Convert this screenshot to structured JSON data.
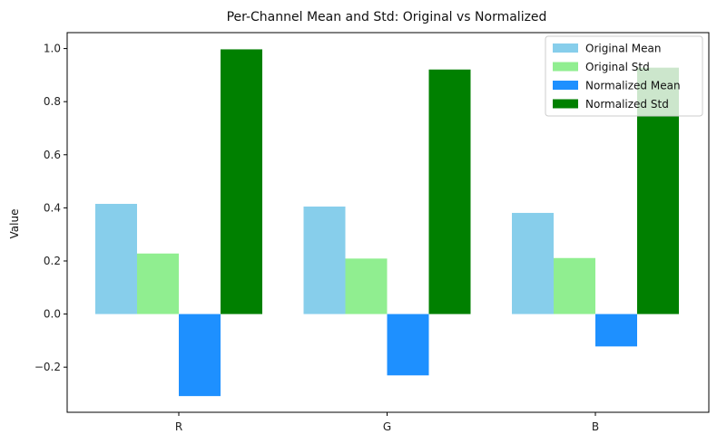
{
  "chart_data": {
    "type": "bar",
    "title": "Per-Channel Mean and Std: Original vs Normalized",
    "xlabel": "",
    "ylabel": "Value",
    "categories": [
      "R",
      "G",
      "B"
    ],
    "series": [
      {
        "name": "Original Mean",
        "color": "#87CEEB",
        "values": [
          0.415,
          0.405,
          0.381
        ]
      },
      {
        "name": "Original Std",
        "color": "#90EE90",
        "values": [
          0.228,
          0.209,
          0.211
        ]
      },
      {
        "name": "Normalized Mean",
        "color": "#1E90FF",
        "values": [
          -0.309,
          -0.231,
          -0.122
        ]
      },
      {
        "name": "Normalized Std",
        "color": "#008000",
        "values": [
          0.997,
          0.921,
          0.928
        ]
      }
    ],
    "ylim": [
      -0.37,
      1.06
    ],
    "yticks": [
      -0.2,
      0.0,
      0.2,
      0.4,
      0.6,
      0.8,
      1.0
    ],
    "ytick_labels": [
      "−0.2",
      "0.0",
      "0.2",
      "0.4",
      "0.6",
      "0.8",
      "1.0"
    ],
    "grid": false,
    "legend_position": "top-right"
  }
}
